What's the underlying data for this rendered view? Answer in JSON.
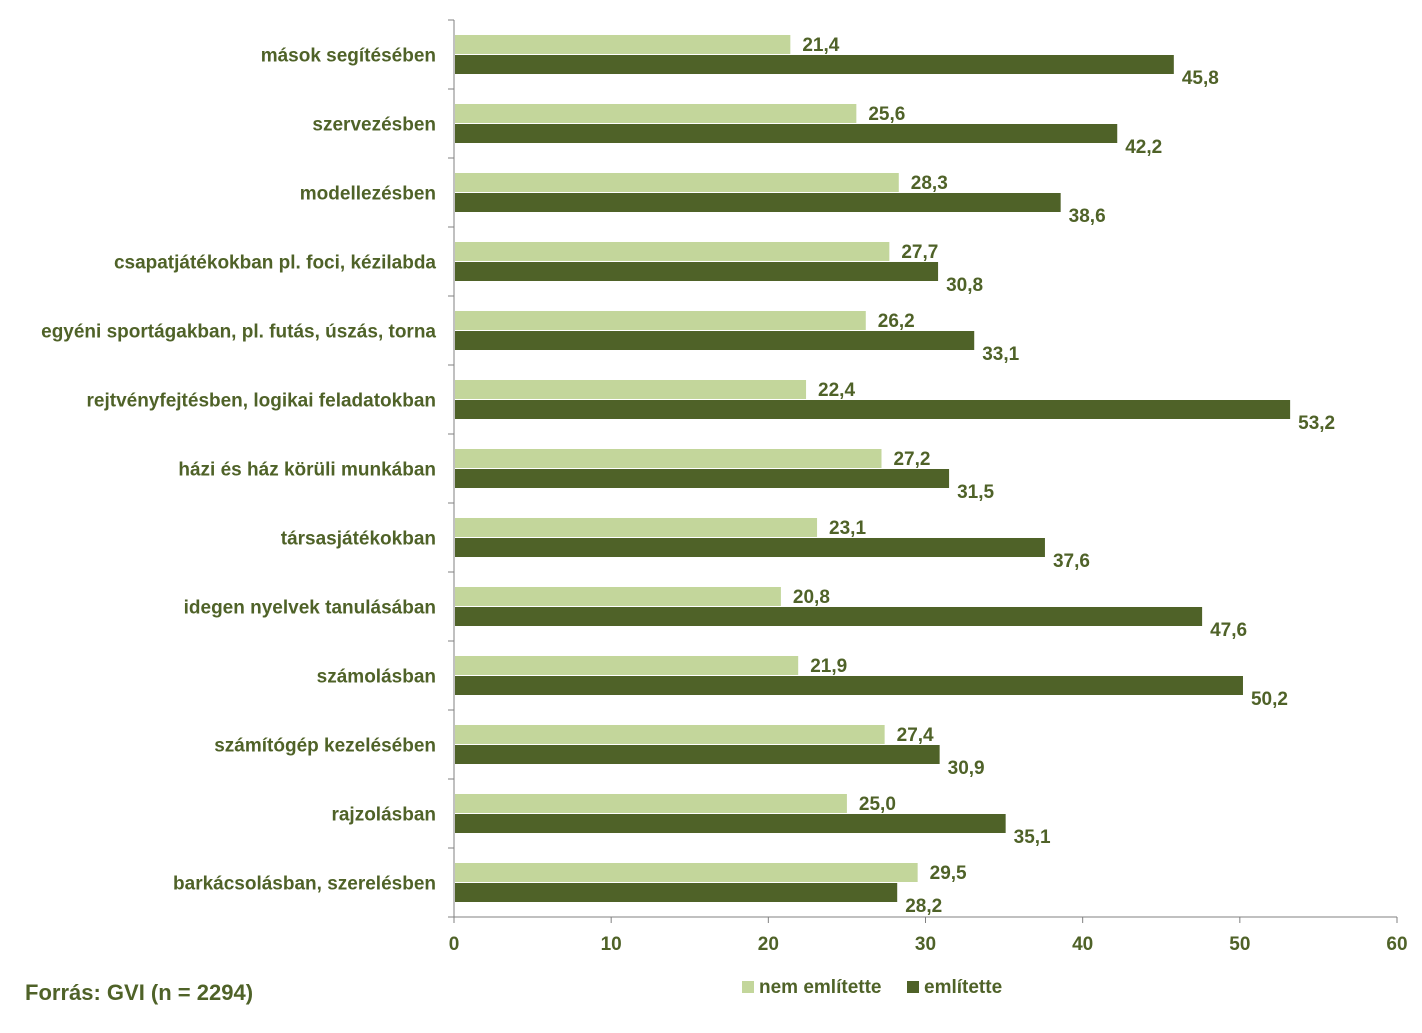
{
  "chart_data": {
    "type": "bar",
    "orientation": "horizontal",
    "categories": [
      "mások segítésében",
      "szervezésben",
      "modellezésben",
      "csapatjátékokban pl. foci, kézilabda",
      "egyéni sportágakban, pl. futás, úszás, torna",
      "rejtvényfejtésben, logikai feladatokban",
      "házi és ház körüli munkában",
      "társasjátékokban",
      "idegen nyelvek tanulásában",
      "számolásban",
      "számítógép kezelésében",
      "rajzolásban",
      "barkácsolásban, szerelésben"
    ],
    "series": [
      {
        "name": "nem említette",
        "color": "#C3D69B",
        "values": [
          21.4,
          25.6,
          28.3,
          27.7,
          26.2,
          22.4,
          27.2,
          23.1,
          20.8,
          21.9,
          27.4,
          25.0,
          29.5
        ],
        "labels": [
          "21,4",
          "25,6",
          "28,3",
          "27,7",
          "26,2",
          "22,4",
          "27,2",
          "23,1",
          "20,8",
          "21,9",
          "27,4",
          "25,0",
          "29,5"
        ]
      },
      {
        "name": "említette",
        "color": "#4F6228",
        "values": [
          45.8,
          42.2,
          38.6,
          30.8,
          33.1,
          53.2,
          31.5,
          37.6,
          47.6,
          50.2,
          30.9,
          35.1,
          28.2
        ],
        "labels": [
          "45,8",
          "42,2",
          "38,6",
          "30,8",
          "33,1",
          "53,2",
          "31,5",
          "37,6",
          "47,6",
          "50,2",
          "30,9",
          "35,1",
          "28,2"
        ]
      }
    ],
    "xlim": [
      0,
      60
    ],
    "xticks": [
      "0",
      "10",
      "20",
      "30",
      "40",
      "50",
      "60"
    ],
    "grid": false,
    "legend_position": "bottom",
    "text_color": "#4F6228"
  },
  "source_text": "Forrás: GVI (n = 2294)"
}
